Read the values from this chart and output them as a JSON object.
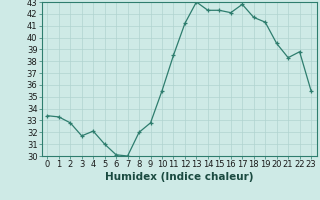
{
  "x": [
    0,
    1,
    2,
    3,
    4,
    5,
    6,
    7,
    8,
    9,
    10,
    11,
    12,
    13,
    14,
    15,
    16,
    17,
    18,
    19,
    20,
    21,
    22,
    23
  ],
  "y": [
    33.4,
    33.3,
    32.8,
    31.7,
    32.1,
    31.0,
    30.1,
    30.0,
    32.0,
    32.8,
    35.5,
    38.5,
    41.2,
    43.0,
    42.3,
    42.3,
    42.1,
    42.8,
    41.7,
    41.3,
    39.5,
    38.3,
    38.8,
    35.5
  ],
  "xlabel": "Humidex (Indice chaleur)",
  "ylim": [
    30,
    43
  ],
  "xlim": [
    -0.5,
    23.5
  ],
  "yticks": [
    30,
    31,
    32,
    33,
    34,
    35,
    36,
    37,
    38,
    39,
    40,
    41,
    42,
    43
  ],
  "xticks": [
    0,
    1,
    2,
    3,
    4,
    5,
    6,
    7,
    8,
    9,
    10,
    11,
    12,
    13,
    14,
    15,
    16,
    17,
    18,
    19,
    20,
    21,
    22,
    23
  ],
  "line_color": "#2e7d6e",
  "marker_color": "#2e7d6e",
  "bg_color": "#ceeae6",
  "grid_color": "#b0d4d0",
  "label_fontsize": 7.5,
  "tick_fontsize": 6.0
}
